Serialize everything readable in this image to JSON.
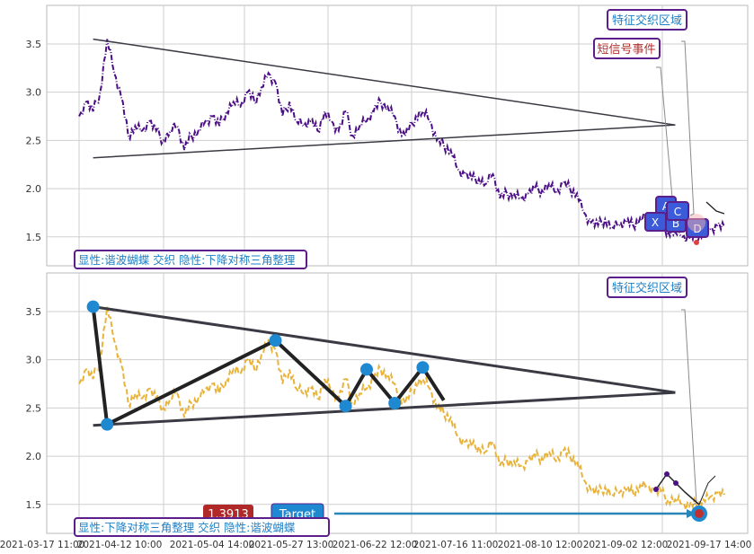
{
  "colors": {
    "grid": "#cfcfcf",
    "frame": "#b9b9b9",
    "top_series": "#4b0f86",
    "bottom_series": "#e8b33a",
    "triangle": "#3a3a44",
    "pattern_line": "#222222",
    "pivot": "#1e88d0",
    "label_text": "#1f7fc4",
    "label_border": "#5b1e8a",
    "red_label": "#b03030",
    "target_box": "#1e88d0",
    "value_box": "#b02828",
    "marker_box": "#3b5bd9",
    "marker_border": "#5b1e8a"
  },
  "chart_data": [
    {
      "type": "line",
      "panel": "top",
      "ylim": [
        1.2,
        3.9
      ],
      "yticks": [
        1.5,
        2.0,
        2.5,
        3.0,
        3.5
      ],
      "series": [
        {
          "style": "dash-dot",
          "x": [
            0,
            2,
            4,
            6,
            8,
            10,
            12,
            14,
            16,
            18,
            20,
            22,
            24,
            26,
            28,
            30,
            32,
            34,
            36,
            38,
            40,
            42,
            44,
            46,
            48,
            50,
            52,
            54,
            56,
            58,
            60,
            62,
            64,
            66,
            68,
            70,
            72,
            74,
            76,
            78,
            80,
            82,
            84,
            86,
            88,
            90,
            92,
            94,
            96,
            98,
            100,
            102,
            104,
            106,
            108,
            110,
            112,
            114,
            116,
            118,
            120,
            122,
            124,
            126,
            128,
            130,
            132,
            134,
            136,
            138,
            140,
            142,
            144,
            146,
            148,
            150,
            152,
            154,
            156,
            158,
            160,
            162,
            164,
            166,
            168,
            170,
            172,
            174,
            176,
            178,
            180,
            182,
            184
          ],
          "y": [
            2.75,
            2.9,
            2.8,
            3.0,
            3.55,
            3.2,
            2.95,
            2.55,
            2.65,
            2.6,
            2.7,
            2.6,
            2.5,
            2.6,
            2.65,
            2.4,
            2.55,
            2.6,
            2.7,
            2.75,
            2.65,
            2.8,
            2.9,
            2.85,
            3.0,
            2.9,
            3.05,
            3.2,
            3.1,
            2.75,
            2.9,
            2.7,
            2.65,
            2.7,
            2.6,
            2.8,
            2.7,
            2.6,
            2.8,
            2.55,
            2.65,
            2.7,
            2.8,
            2.9,
            2.85,
            2.75,
            2.55,
            2.6,
            2.75,
            2.8,
            2.7,
            2.5,
            2.45,
            2.4,
            2.2,
            2.15,
            2.1,
            2.1,
            2.05,
            2.15,
            1.9,
            1.95,
            1.95,
            1.9,
            1.95,
            2.0,
            1.98,
            2.05,
            1.95,
            2.05,
            2.0,
            1.95,
            1.75,
            1.65,
            1.62,
            1.68,
            1.6,
            1.62,
            1.65,
            1.62,
            1.7,
            1.7,
            1.65,
            1.62,
            1.55,
            1.55,
            1.5,
            1.48,
            1.5,
            1.55,
            1.58,
            1.62,
            1.6
          ]
        }
      ],
      "triangle": {
        "apex": [
          170,
          2.66
        ],
        "upper_start": [
          4,
          3.55
        ],
        "lower_start": [
          4,
          2.32
        ]
      },
      "labels": {
        "feature_zone": "特征交织区域",
        "short_signal": "短信号事件",
        "pattern": "显性:谐波蝴蝶 交织 隐性:下降对称三角整理"
      },
      "markers": [
        "A",
        "C",
        "B",
        "X",
        "D"
      ]
    },
    {
      "type": "line",
      "panel": "bottom",
      "ylim": [
        1.2,
        3.9
      ],
      "yticks": [
        1.5,
        2.0,
        2.5,
        3.0,
        3.5
      ],
      "series": [
        {
          "style": "dashed",
          "same_as_top": true
        }
      ],
      "pivots": [
        {
          "x": 4,
          "y": 3.55
        },
        {
          "x": 8,
          "y": 2.33
        },
        {
          "x": 56,
          "y": 3.2
        },
        {
          "x": 76,
          "y": 2.52
        },
        {
          "x": 82,
          "y": 2.9
        },
        {
          "x": 90,
          "y": 2.55
        },
        {
          "x": 98,
          "y": 2.92
        }
      ],
      "labels": {
        "feature_zone": "特征交织区域",
        "pattern": "显性:下降对称三角整理 交织 隐性:谐波蝴蝶",
        "value": "1.3913",
        "target": "Target"
      },
      "xticks": [
        "2021-03-17 11:00",
        "2021-04-12 10:00",
        "2021-05-04 14:00",
        "2021-05-27 13:00",
        "2021-06-22 12:00",
        "2021-07-16 11:00",
        "2021-08-10 12:00",
        "2021-09-02 12:00",
        "2021-09-17 14:00"
      ]
    }
  ]
}
